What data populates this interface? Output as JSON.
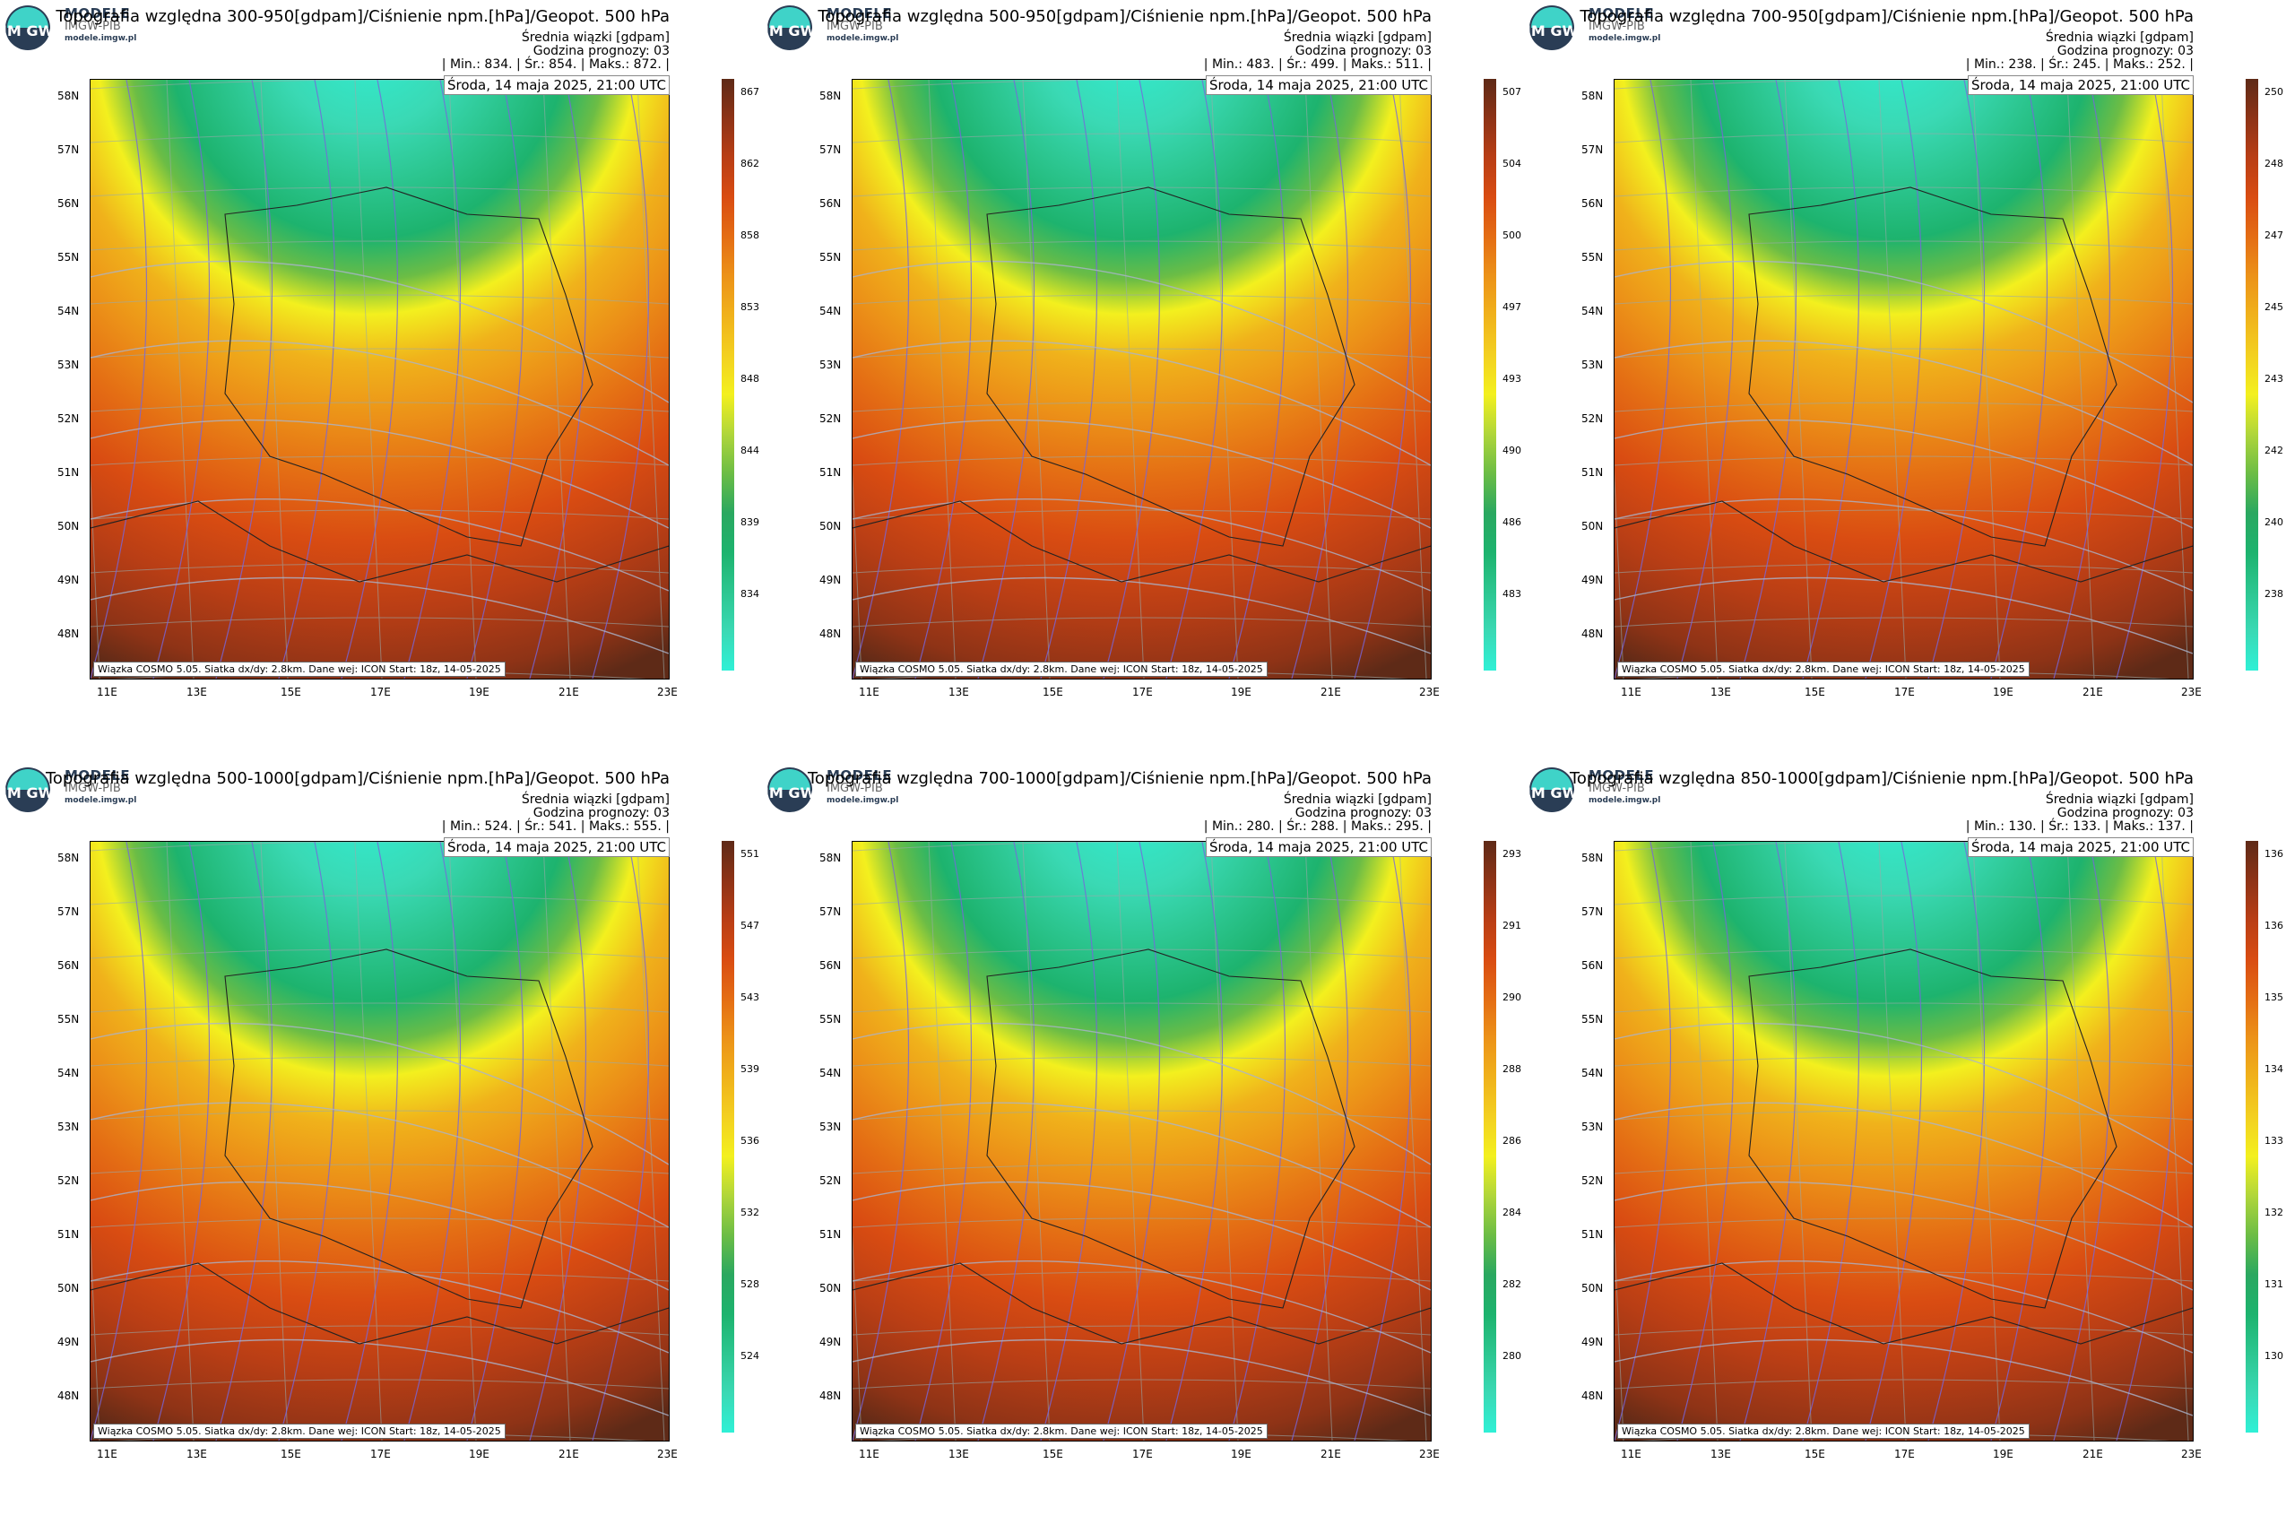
{
  "brand": {
    "line1": "MODELE",
    "line2": "IMGW-PIB",
    "url": "modele.imgw.pl"
  },
  "common": {
    "subtitle1": "Średnia wiązki [gdpam]",
    "subtitle2": "Godzina prognozy: 03",
    "date": "Środa, 14 maja 2025, 21:00 UTC",
    "footer": "Wiązka COSMO 5.05. Siatka dx/dy: 2.8km. Dane wej: ICON Start: 18z, 14-05-2025",
    "lat_labels": [
      "58N",
      "57N",
      "56N",
      "55N",
      "54N",
      "53N",
      "52N",
      "51N",
      "50N",
      "49N",
      "48N"
    ],
    "lon_labels": [
      "11E",
      "13E",
      "15E",
      "17E",
      "19E",
      "21E",
      "23E"
    ]
  },
  "colors": {
    "ramp": [
      "#2ff0d6",
      "#3ad9b4",
      "#2cc690",
      "#1db36e",
      "#2aa860",
      "#6cbd45",
      "#b0d63a",
      "#f3f01e",
      "#f3d020",
      "#f0b21b",
      "#ec9218",
      "#e46d14",
      "#d94c12",
      "#b93e15",
      "#8e3316",
      "#5e2a17"
    ]
  },
  "panels": [
    {
      "title": "Topografia względna 300-950[gdpam]/Ciśnienie npm.[hPa]/Geopot. 500 hPa",
      "stats": "| Min.:    834. | Śr.:    854. | Maks.:    872. |",
      "cbar_ticks": [
        "867",
        "862",
        "858",
        "853",
        "848",
        "844",
        "839",
        "834"
      ]
    },
    {
      "title": "Topografia względna 500-950[gdpam]/Ciśnienie npm.[hPa]/Geopot. 500 hPa",
      "stats": "| Min.:    483. | Śr.:    499. | Maks.:    511. |",
      "cbar_ticks": [
        "507",
        "504",
        "500",
        "497",
        "493",
        "490",
        "486",
        "483"
      ]
    },
    {
      "title": "Topografia względna 700-950[gdpam]/Ciśnienie npm.[hPa]/Geopot. 500 hPa",
      "stats": "| Min.:    238. | Śr.:    245. | Maks.:    252. |",
      "cbar_ticks": [
        "250",
        "248",
        "247",
        "245",
        "243",
        "242",
        "240",
        "238"
      ]
    },
    {
      "title": "Topografia względna 500-1000[gdpam]/Ciśnienie npm.[hPa]/Geopot. 500 hPa",
      "stats": "| Min.:    524. | Śr.:    541. | Maks.:    555. |",
      "cbar_ticks": [
        "551",
        "547",
        "543",
        "539",
        "536",
        "532",
        "528",
        "524"
      ]
    },
    {
      "title": "Topografia względna 700-1000[gdpam]/Ciśnienie npm.[hPa]/Geopot. 500 hPa",
      "stats": "| Min.:    280. | Śr.:    288. | Maks.:    295. |",
      "cbar_ticks": [
        "293",
        "291",
        "290",
        "288",
        "286",
        "284",
        "282",
        "280"
      ]
    },
    {
      "title": "Topografia względna 850-1000[gdpam]/Ciśnienie npm.[hPa]/Geopot. 500 hPa",
      "stats": "| Min.:    130. | Śr.:    133. | Maks.:    137. |",
      "cbar_ticks": [
        "136",
        "136",
        "135",
        "134",
        "133",
        "132",
        "131",
        "130"
      ]
    }
  ]
}
